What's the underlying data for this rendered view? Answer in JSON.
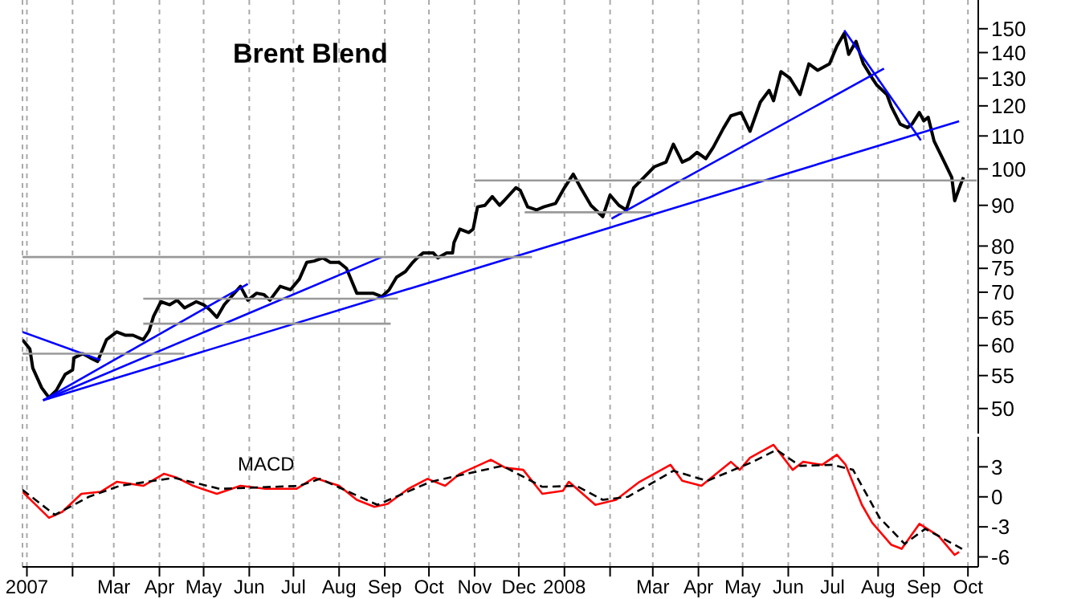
{
  "chart_data": [
    {
      "type": "line",
      "title": "Brent Blend",
      "log": "y",
      "grid": "x",
      "tick_labels": "y",
      "xlim": [
        "2006-12-29",
        "2008-10-08"
      ],
      "xticks": [
        "2007-01-01",
        "2007-02-01",
        "2007-03-01",
        "2007-04-01",
        "2007-05-01",
        "2007-06-01",
        "2007-07-01",
        "2007-08-01",
        "2007-09-01",
        "2007-10-01",
        "2007-11-01",
        "2007-12-01",
        "2008-01-01",
        "2008-02-01",
        "2008-03-01",
        "2008-04-01",
        "2008-05-01",
        "2008-06-01",
        "2008-07-01",
        "2008-08-01",
        "2008-09-01",
        "2008-10-01"
      ],
      "ylim": [
        46.5,
        163
      ],
      "yticks": [
        50,
        55,
        60,
        65,
        70,
        75,
        80,
        90,
        100,
        110,
        120,
        130,
        140,
        150
      ],
      "series": [
        {
          "type": "line",
          "color": "#000000",
          "x": [
            "2006-12-29",
            "2007-01-03",
            "2007-01-05",
            "2007-01-11",
            "2007-01-16",
            "2007-01-21",
            "2007-01-27",
            "2007-02-01",
            "2007-02-02",
            "2007-02-08",
            "2007-02-13",
            "2007-02-18",
            "2007-02-24",
            "2007-03-03",
            "2007-03-09",
            "2007-03-14",
            "2007-03-21",
            "2007-03-25",
            "2007-03-28",
            "2007-04-02",
            "2007-04-08",
            "2007-04-13",
            "2007-04-18",
            "2007-04-26",
            "2007-05-01",
            "2007-05-05",
            "2007-05-10",
            "2007-05-15",
            "2007-05-21",
            "2007-05-26",
            "2007-05-31",
            "2007-06-06",
            "2007-06-11",
            "2007-06-15",
            "2007-06-22",
            "2007-06-29",
            "2007-07-05",
            "2007-07-10",
            "2007-07-15",
            "2007-07-21",
            "2007-07-26",
            "2007-08-01",
            "2007-08-06",
            "2007-08-09",
            "2007-08-13",
            "2007-08-19",
            "2007-08-24",
            "2007-08-30",
            "2007-09-04",
            "2007-09-09",
            "2007-09-15",
            "2007-09-20",
            "2007-09-23",
            "2007-09-27",
            "2007-10-04",
            "2007-10-07",
            "2007-10-13",
            "2007-10-17",
            "2007-10-18",
            "2007-10-22",
            "2007-10-28",
            "2007-10-31",
            "2007-11-03",
            "2007-11-08",
            "2007-11-13",
            "2007-11-18",
            "2007-11-21",
            "2007-11-29",
            "2007-12-02",
            "2007-12-07",
            "2007-12-13",
            "2007-12-18",
            "2007-12-26",
            "2008-01-01",
            "2008-01-07",
            "2008-01-12",
            "2008-01-19",
            "2008-01-27",
            "2008-02-01",
            "2008-02-07",
            "2008-02-12",
            "2008-02-17",
            "2008-02-24",
            "2008-03-02",
            "2008-03-10",
            "2008-03-15",
            "2008-03-21",
            "2008-03-26",
            "2008-03-31",
            "2008-04-06",
            "2008-04-11",
            "2008-04-18",
            "2008-04-23",
            "2008-04-30",
            "2008-05-06",
            "2008-05-13",
            "2008-05-19",
            "2008-05-22",
            "2008-05-27",
            "2008-06-02",
            "2008-06-09",
            "2008-06-15",
            "2008-06-21",
            "2008-06-29",
            "2008-07-04",
            "2008-07-09",
            "2008-07-12",
            "2008-07-17",
            "2008-07-22",
            "2008-07-28",
            "2008-07-31",
            "2008-08-07",
            "2008-08-10",
            "2008-08-16",
            "2008-08-21",
            "2008-08-24",
            "2008-08-29",
            "2008-09-01",
            "2008-09-04",
            "2008-09-08",
            "2008-09-15",
            "2008-09-20",
            "2008-09-22",
            "2008-09-26",
            "2008-09-28"
          ],
          "values": [
            61,
            59.4,
            56.2,
            53.1,
            51.6,
            52.7,
            55.2,
            55.9,
            57.9,
            58.6,
            57.9,
            57.3,
            61,
            62.4,
            61.8,
            61.8,
            61,
            62.6,
            65.3,
            68.1,
            67.5,
            68.4,
            66.9,
            68.1,
            67.5,
            66.6,
            65.1,
            67.5,
            69.5,
            71.2,
            68.4,
            69.8,
            69.5,
            68.4,
            71.2,
            70.5,
            72.7,
            76.3,
            76.6,
            77.3,
            76.3,
            76.3,
            75,
            72.7,
            69.8,
            69.8,
            69.8,
            69.1,
            70.5,
            73.1,
            74.3,
            76.3,
            77.3,
            78.4,
            78.4,
            77.3,
            78.4,
            78.4,
            80.8,
            84,
            83.2,
            84,
            89.6,
            90,
            92.3,
            90,
            91.2,
            94.7,
            94,
            89.6,
            88.8,
            89.6,
            90.5,
            94.7,
            98.5,
            94.7,
            90,
            87.1,
            92.7,
            90,
            88.8,
            94.7,
            97.6,
            100.6,
            102,
            107.4,
            102,
            103,
            104.9,
            103,
            106.4,
            112.5,
            116.6,
            117.7,
            111.5,
            121.3,
            125.5,
            121.8,
            132.5,
            130.1,
            124,
            135.5,
            133,
            135.5,
            142.6,
            148,
            139.3,
            144.6,
            135.5,
            130,
            127.5,
            124,
            119.7,
            113.8,
            112.7,
            113.8,
            117.7,
            114.9,
            116.1,
            108.4,
            102,
            97.6,
            91.2,
            95.6,
            97.6
          ]
        },
        {
          "type": "line",
          "color": "#0000ff",
          "x": [
            "2007-01-12",
            "2007-05-31"
          ],
          "values": [
            51.2,
            71.7
          ]
        },
        {
          "type": "line",
          "color": "#0000ff",
          "x": [
            "2007-01-12",
            "2007-08-30"
          ],
          "values": [
            51.2,
            77.5
          ]
        },
        {
          "type": "line",
          "color": "#0000ff",
          "x": [
            "2007-01-12",
            "2008-09-25"
          ],
          "values": [
            51.2,
            114.8
          ]
        },
        {
          "type": "line",
          "color": "#0000ff",
          "x": [
            "2008-02-02",
            "2008-08-05"
          ],
          "values": [
            86.6,
            133.7
          ]
        },
        {
          "type": "line",
          "color": "#0000ff",
          "x": [
            "2006-12-29",
            "2007-02-20"
          ],
          "values": [
            62.4,
            57.5
          ]
        },
        {
          "type": "line",
          "color": "#0000ff",
          "x": [
            "2008-07-09",
            "2008-08-30"
          ],
          "values": [
            149.3,
            108.6
          ]
        },
        {
          "type": "line",
          "color": "#999999",
          "x": [
            "2006-12-29",
            "2007-04-18"
          ],
          "values": [
            58.6,
            58.6
          ]
        },
        {
          "type": "line",
          "color": "#999999",
          "x": [
            "2007-03-21",
            "2007-09-10"
          ],
          "values": [
            68.7,
            68.7
          ]
        },
        {
          "type": "line",
          "color": "#999999",
          "x": [
            "2007-03-21",
            "2007-09-05"
          ],
          "values": [
            63.9,
            63.9
          ]
        },
        {
          "type": "line",
          "color": "#999999",
          "x": [
            "2006-12-29",
            "2007-12-10"
          ],
          "values": [
            77.5,
            77.5
          ]
        },
        {
          "type": "line",
          "color": "#999999",
          "x": [
            "2007-11-01",
            "2008-10-07"
          ],
          "values": [
            96.7,
            96.7
          ]
        },
        {
          "type": "line",
          "color": "#999999",
          "x": [
            "2007-12-05",
            "2008-02-29"
          ],
          "values": [
            88.2,
            88.2
          ]
        }
      ]
    },
    {
      "type": "line",
      "title": "MACD",
      "grid": "x",
      "xlim": [
        "2006-12-29",
        "2008-10-08"
      ],
      "xticks": [
        {
          "value": "2007-01-01",
          "label": "2007"
        },
        {
          "value": "2007-02-01",
          "label": null
        },
        {
          "value": "2007-03-01",
          "label": "Mar"
        },
        {
          "value": "2007-04-01",
          "label": "Apr"
        },
        {
          "value": "2007-05-01",
          "label": "May"
        },
        {
          "value": "2007-06-01",
          "label": "Jun"
        },
        {
          "value": "2007-07-01",
          "label": "Jul"
        },
        {
          "value": "2007-08-01",
          "label": "Aug"
        },
        {
          "value": "2007-09-01",
          "label": "Sep"
        },
        {
          "value": "2007-10-01",
          "label": "Oct"
        },
        {
          "value": "2007-11-01",
          "label": "Nov"
        },
        {
          "value": "2007-12-01",
          "label": "Dec"
        },
        {
          "value": "2008-01-01",
          "label": "2008"
        },
        {
          "value": "2008-02-01",
          "label": null
        },
        {
          "value": "2008-03-01",
          "label": "Mar"
        },
        {
          "value": "2008-04-01",
          "label": "Apr"
        },
        {
          "value": "2008-05-01",
          "label": "May"
        },
        {
          "value": "2008-06-01",
          "label": "Jun"
        },
        {
          "value": "2008-07-01",
          "label": "Jul"
        },
        {
          "value": "2008-08-01",
          "label": "Aug"
        },
        {
          "value": "2008-09-01",
          "label": "Sep"
        },
        {
          "value": "2008-10-01",
          "label": "Oct"
        }
      ],
      "ylim": [
        -7,
        6
      ],
      "yticks": [
        3,
        0,
        -3,
        -6
      ],
      "series": [
        {
          "type": "line",
          "color": "#ff0000",
          "line_style": "solid",
          "x": [
            "2006-12-29",
            "2007-01-16",
            "2007-01-25",
            "2007-02-07",
            "2007-02-20",
            "2007-03-03",
            "2007-03-21",
            "2007-04-04",
            "2007-04-13",
            "2007-04-24",
            "2007-05-10",
            "2007-05-26",
            "2007-06-12",
            "2007-07-03",
            "2007-07-15",
            "2007-08-01",
            "2007-08-13",
            "2007-08-25",
            "2007-09-03",
            "2007-09-17",
            "2007-09-30",
            "2007-10-12",
            "2007-10-22",
            "2007-11-12",
            "2007-11-22",
            "2007-12-04",
            "2007-12-17",
            "2007-12-31",
            "2008-01-04",
            "2008-01-22",
            "2008-02-05",
            "2008-02-21",
            "2008-03-13",
            "2008-03-21",
            "2008-04-03",
            "2008-04-23",
            "2008-04-29",
            "2008-05-06",
            "2008-05-22",
            "2008-06-04",
            "2008-06-11",
            "2008-06-24",
            "2008-07-04",
            "2008-07-10",
            "2008-07-21",
            "2008-07-28",
            "2008-08-10",
            "2008-08-17",
            "2008-08-29",
            "2008-09-11",
            "2008-09-22",
            "2008-09-25"
          ],
          "values": [
            0.5,
            -2.1,
            -1.5,
            0.3,
            0.5,
            1.5,
            1.1,
            2.3,
            1.9,
            1.1,
            0.3,
            1.1,
            0.8,
            0.8,
            1.9,
            1.1,
            -0.3,
            -1,
            -0.7,
            0.8,
            1.8,
            1.1,
            2.3,
            3.7,
            2.9,
            2.7,
            0.3,
            0.6,
            1.5,
            -0.8,
            -0.3,
            1.5,
            3.2,
            1.6,
            1.1,
            3.5,
            2.7,
            3.9,
            5.2,
            2.7,
            3.5,
            3.2,
            4.2,
            3.2,
            -0.8,
            -2.6,
            -4.8,
            -5.2,
            -2.7,
            -3.9,
            -5.8,
            -5.5
          ]
        },
        {
          "type": "line",
          "color": "#000000",
          "line_style": "dashed",
          "x": [
            "2006-12-29",
            "2007-01-20",
            "2007-02-12",
            "2007-03-05",
            "2007-04-11",
            "2007-05-12",
            "2007-07-05",
            "2007-07-19",
            "2007-08-27",
            "2007-10-02",
            "2007-11-20",
            "2007-12-17",
            "2008-01-09",
            "2008-01-27",
            "2008-02-13",
            "2008-03-15",
            "2008-04-07",
            "2008-05-08",
            "2008-05-24",
            "2008-06-09",
            "2008-07-01",
            "2008-07-15",
            "2008-08-02",
            "2008-08-19",
            "2008-09-02",
            "2008-09-27"
          ],
          "values": [
            0.7,
            -1.8,
            0,
            1.1,
            1.9,
            0.8,
            1.1,
            1.8,
            -0.8,
            1.5,
            3.1,
            1,
            1.1,
            -0.3,
            0,
            2.6,
            1.6,
            3.5,
            4.7,
            3.1,
            3.2,
            2.7,
            -2.1,
            -4.7,
            -3.2,
            -5.2
          ]
        }
      ]
    }
  ]
}
